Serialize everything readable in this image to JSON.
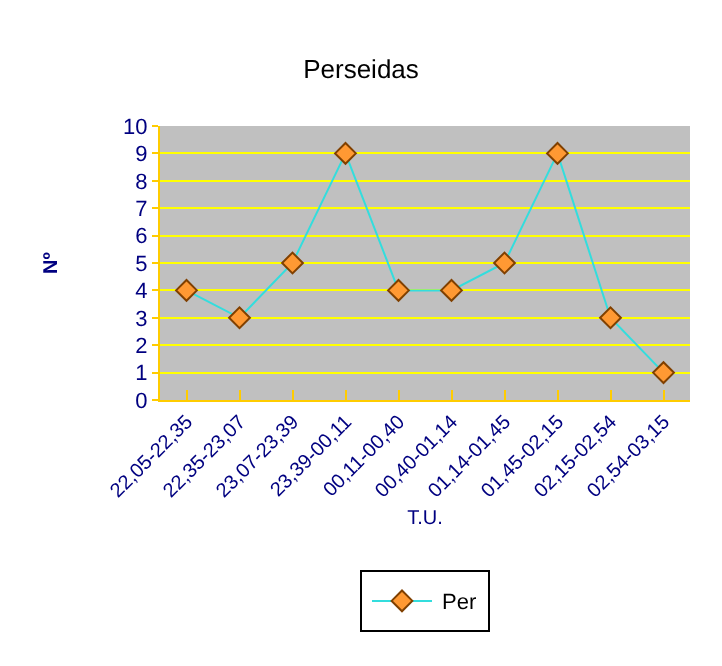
{
  "chart_data": {
    "type": "line",
    "title": "Perseidas",
    "xlabel": "T.U.",
    "ylabel": "Nº",
    "categories": [
      "22,05-22,35",
      "22,35-23,07",
      "23,07-23,39",
      "23,39-00,11",
      "00,11-00,40",
      "00,40-01,14",
      "01,14-01,45",
      "01,45-02,15",
      "02,15-02,54",
      "02,54-03,15"
    ],
    "series": [
      {
        "name": "Per",
        "color": "#33dddd",
        "values": [
          4,
          3,
          5,
          9,
          4,
          4,
          5,
          9,
          3,
          1
        ]
      }
    ],
    "ylim": [
      0,
      10
    ],
    "yticks": [
      0,
      1,
      2,
      3,
      4,
      5,
      6,
      7,
      8,
      9,
      10
    ],
    "grid": "y",
    "legend": "bottom",
    "marker": "diamond",
    "line_style": "solid"
  }
}
